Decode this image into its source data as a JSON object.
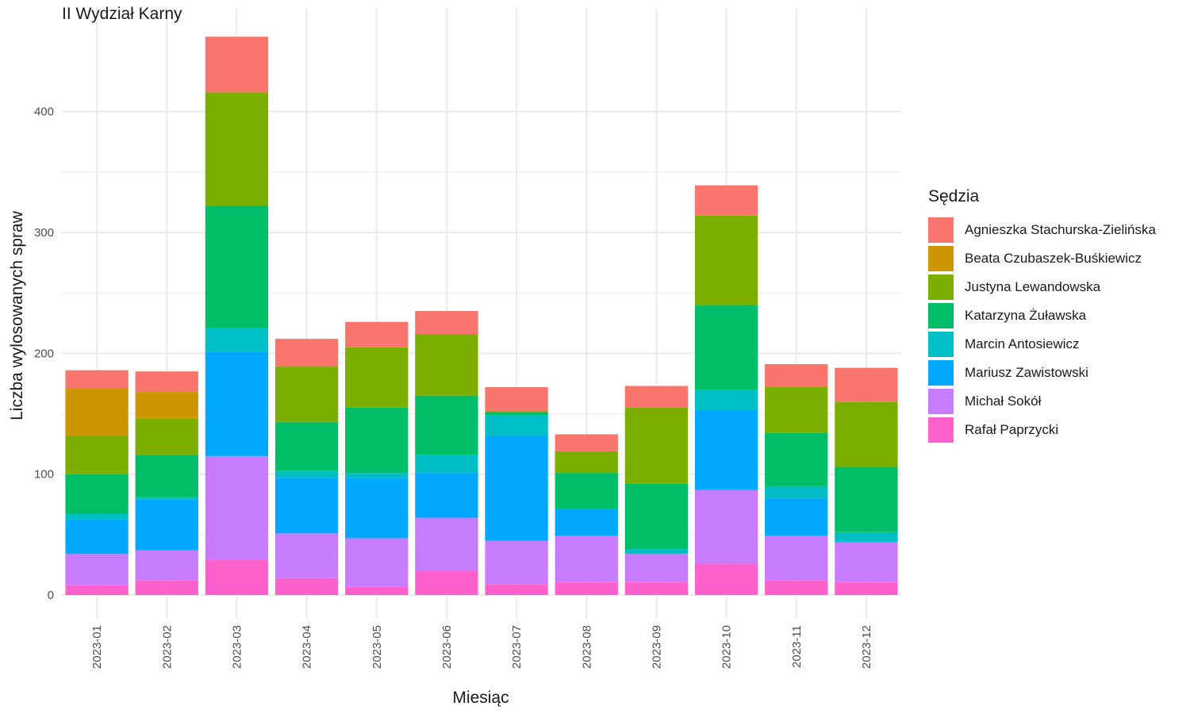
{
  "chart_data": {
    "type": "bar",
    "stacked": true,
    "title": "II Wydział Karny",
    "xlabel": "Miesiąc",
    "ylabel": "Liczba wylosowanych spraw",
    "ylim": [
      0,
      465
    ],
    "yticks": [
      0,
      100,
      200,
      300,
      400
    ],
    "grid": true,
    "legend_title": "Sędzia",
    "legend_position": "right",
    "categories": [
      "2023-01",
      "2023-02",
      "2023-03",
      "2023-04",
      "2023-05",
      "2023-06",
      "2023-07",
      "2023-08",
      "2023-09",
      "2023-10",
      "2023-11",
      "2023-12"
    ],
    "series": [
      {
        "name": "Agnieszka Stachurska-Zielińska",
        "color": "#F8766D",
        "values": [
          15,
          17,
          46,
          23,
          21,
          19,
          20,
          14,
          18,
          25,
          19,
          28
        ]
      },
      {
        "name": "Beata Czubaszek-Buśkiewicz",
        "color": "#CD9600",
        "values": [
          39,
          22,
          0,
          0,
          0,
          0,
          0,
          0,
          0,
          0,
          0,
          0
        ]
      },
      {
        "name": "Justyna Lewandowska",
        "color": "#7CAE00",
        "values": [
          32,
          30,
          94,
          46,
          50,
          51,
          1,
          18,
          63,
          74,
          38,
          54
        ]
      },
      {
        "name": "Katarzyna Żuławska",
        "color": "#00BE67",
        "values": [
          33,
          35,
          101,
          40,
          54,
          49,
          2,
          30,
          54,
          70,
          44,
          54
        ]
      },
      {
        "name": "Marcin Antosiewicz",
        "color": "#00BFC4",
        "values": [
          5,
          2,
          20,
          6,
          4,
          15,
          17,
          0,
          4,
          17,
          10,
          8
        ]
      },
      {
        "name": "Mariusz Zawistowski",
        "color": "#00A9FF",
        "values": [
          28,
          42,
          86,
          46,
          50,
          37,
          87,
          22,
          0,
          66,
          31,
          0
        ]
      },
      {
        "name": "Michał Sokół",
        "color": "#C77CFF",
        "values": [
          26,
          25,
          86,
          37,
          40,
          44,
          36,
          38,
          23,
          61,
          37,
          33
        ]
      },
      {
        "name": "Rafał Paprzycki",
        "color": "#FF61CC",
        "values": [
          8,
          12,
          29,
          14,
          7,
          20,
          9,
          11,
          11,
          26,
          12,
          11
        ]
      }
    ]
  }
}
